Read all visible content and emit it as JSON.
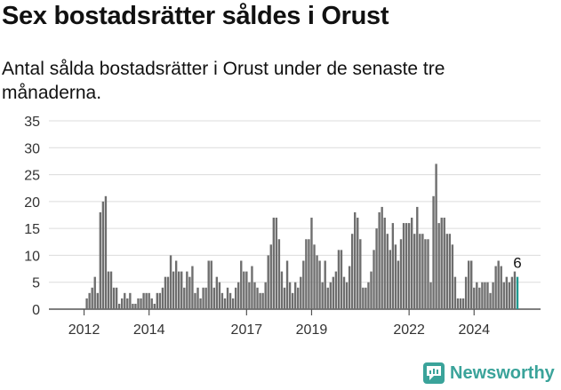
{
  "title": "Sex bostadsrätter såldes i Orust",
  "subtitle": "Antal sålda bostadsrätter i Orust under de senaste tre månaderna.",
  "brand": "Newsworthy",
  "colors": {
    "bar": "#6e6e6e",
    "highlight": "#1f9a91",
    "grid": "#dcdcdc",
    "brand": "#3aa39a"
  },
  "chart_data": {
    "type": "bar",
    "x_start": "2011-01",
    "x_tick_labels": [
      "2012",
      "2014",
      "2017",
      "2019",
      "2022",
      "2024"
    ],
    "ylim": [
      0,
      35
    ],
    "y_ticks": [
      0,
      5,
      10,
      15,
      20,
      25,
      30,
      35
    ],
    "grid": true,
    "highlight_label": "6",
    "values": [
      0,
      0,
      0,
      0,
      0,
      0,
      0,
      0,
      0,
      0,
      0,
      0,
      0,
      2,
      3,
      4,
      6,
      3,
      18,
      20,
      21,
      7,
      7,
      4,
      4,
      1,
      2,
      3,
      2,
      3,
      1,
      1,
      2,
      2,
      3,
      3,
      3,
      2,
      1,
      3,
      3,
      4,
      6,
      6,
      10,
      7,
      9,
      7,
      7,
      4,
      7,
      6,
      8,
      3,
      4,
      2,
      4,
      4,
      9,
      9,
      4,
      6,
      5,
      3,
      2,
      4,
      3,
      2,
      4,
      5,
      9,
      7,
      7,
      5,
      8,
      5,
      4,
      3,
      3,
      5,
      10,
      12,
      17,
      17,
      13,
      7,
      4,
      9,
      5,
      3,
      5,
      4,
      6,
      9,
      13,
      13,
      17,
      12,
      10,
      9,
      5,
      9,
      4,
      5,
      6,
      7,
      11,
      11,
      6,
      5,
      8,
      14,
      18,
      17,
      13,
      4,
      4,
      5,
      7,
      11,
      15,
      18,
      19,
      17,
      14,
      11,
      16,
      12,
      9,
      13,
      16,
      16,
      16,
      17,
      14,
      19,
      14,
      14,
      13,
      13,
      5,
      21,
      27,
      16,
      17,
      17,
      14,
      14,
      12,
      6,
      2,
      2,
      2,
      6,
      9,
      9,
      4,
      5,
      4,
      5,
      5,
      5,
      3,
      5,
      8,
      9,
      8,
      5,
      6,
      5,
      6,
      7,
      6
    ]
  }
}
